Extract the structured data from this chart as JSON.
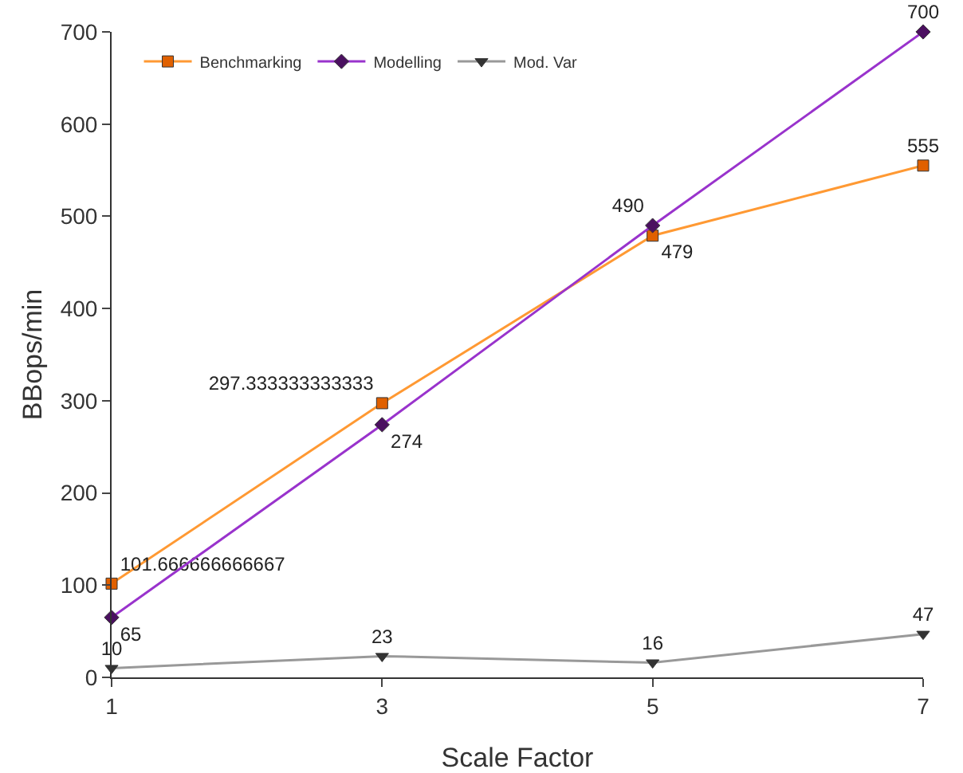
{
  "chart_data": {
    "type": "line",
    "xlabel": "Scale Factor",
    "ylabel": "BBops/min",
    "x": [
      1,
      3,
      5,
      7
    ],
    "xlim": [
      1,
      7
    ],
    "xticks": [
      1,
      3,
      5,
      7
    ],
    "ylim": [
      0,
      700
    ],
    "yticks": [
      0,
      100,
      200,
      300,
      400,
      500,
      600,
      700
    ],
    "grid": false,
    "legend": "top left",
    "data_labels": true,
    "series": [
      {
        "name": "Benchmarking",
        "color": "#ff9933",
        "marker": "square",
        "values": [
          101.666666666667,
          297.333333333333,
          479,
          555
        ]
      },
      {
        "name": "Modelling",
        "color": "#9933cc",
        "marker": "diamond",
        "values": [
          65,
          274,
          490,
          700
        ]
      },
      {
        "name": "Mod. Var",
        "color": "#999999",
        "marker": "triangle",
        "values": [
          10,
          23,
          16,
          47
        ]
      }
    ]
  }
}
